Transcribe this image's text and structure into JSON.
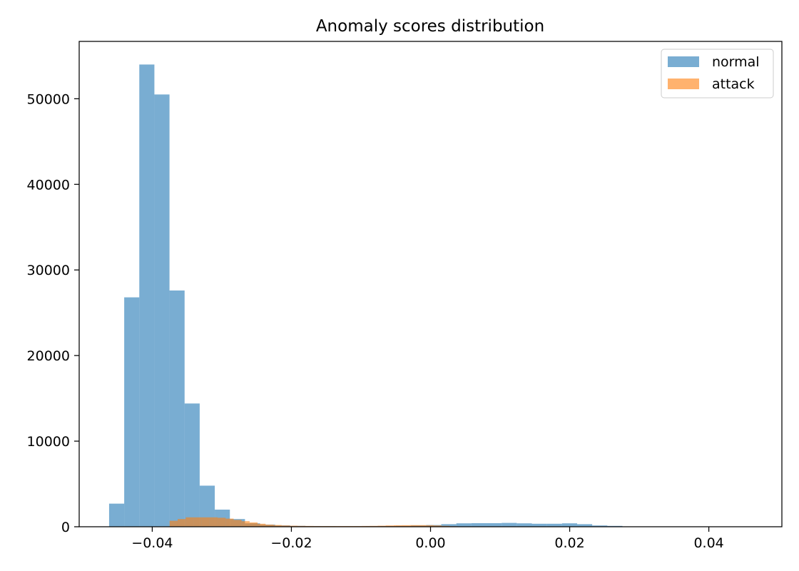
{
  "chart_data": {
    "type": "bar",
    "title": "Anomaly scores distribution",
    "xlabel": "",
    "ylabel": "",
    "xlim": [
      -0.0505,
      0.0505
    ],
    "ylim": [
      0,
      56700
    ],
    "x_ticks": [
      -0.04,
      -0.02,
      0.0,
      0.02,
      0.04
    ],
    "x_tick_labels": [
      "−0.04",
      "−0.02",
      "0.00",
      "0.02",
      "0.04"
    ],
    "y_ticks": [
      0,
      10000,
      20000,
      30000,
      40000,
      50000
    ],
    "y_tick_labels": [
      "0",
      "10000",
      "20000",
      "30000",
      "40000",
      "50000"
    ],
    "grid": false,
    "legend_position": "top-right",
    "series": [
      {
        "name": "normal",
        "color": "#1f77b4",
        "opacity": 0.6,
        "bin_width": 0.00217,
        "bins": [
          {
            "x0": -0.0462,
            "value": 2700
          },
          {
            "x0": -0.04403,
            "value": 26800
          },
          {
            "x0": -0.04186,
            "value": 54000
          },
          {
            "x0": -0.03969,
            "value": 50500
          },
          {
            "x0": -0.03752,
            "value": 27600
          },
          {
            "x0": -0.03535,
            "value": 14400
          },
          {
            "x0": -0.03318,
            "value": 4800
          },
          {
            "x0": -0.03101,
            "value": 2000
          },
          {
            "x0": -0.02884,
            "value": 900
          },
          {
            "x0": -0.02667,
            "value": 400
          },
          {
            "x0": -0.0245,
            "value": 250
          },
          {
            "x0": -0.02233,
            "value": 150
          },
          {
            "x0": -0.02016,
            "value": 100
          },
          {
            "x0": -0.01799,
            "value": 80
          },
          {
            "x0": -0.01582,
            "value": 70
          },
          {
            "x0": -0.01365,
            "value": 60
          },
          {
            "x0": -0.01148,
            "value": 60
          },
          {
            "x0": -0.00931,
            "value": 70
          },
          {
            "x0": -0.00714,
            "value": 80
          },
          {
            "x0": -0.00497,
            "value": 100
          },
          {
            "x0": -0.0028,
            "value": 150
          },
          {
            "x0": -0.00063,
            "value": 200
          },
          {
            "x0": 0.00154,
            "value": 300
          },
          {
            "x0": 0.00371,
            "value": 400
          },
          {
            "x0": 0.00588,
            "value": 420
          },
          {
            "x0": 0.00805,
            "value": 420
          },
          {
            "x0": 0.01022,
            "value": 450
          },
          {
            "x0": 0.01239,
            "value": 400
          },
          {
            "x0": 0.01456,
            "value": 350
          },
          {
            "x0": 0.01673,
            "value": 350
          },
          {
            "x0": 0.0189,
            "value": 400
          },
          {
            "x0": 0.02107,
            "value": 300
          },
          {
            "x0": 0.02324,
            "value": 150
          },
          {
            "x0": 0.02541,
            "value": 100
          },
          {
            "x0": 0.02758,
            "value": 40
          },
          {
            "x0": 0.02975,
            "value": 20
          },
          {
            "x0": 0.03192,
            "value": 10
          },
          {
            "x0": 0.03409,
            "value": 10
          },
          {
            "x0": 0.03626,
            "value": 5
          },
          {
            "x0": 0.03843,
            "value": 5
          },
          {
            "x0": 0.0406,
            "value": 5
          },
          {
            "x0": 0.04277,
            "value": 5
          }
        ]
      },
      {
        "name": "attack",
        "color": "#ff7f0e",
        "opacity": 0.6,
        "bin_width": 0.00115,
        "bins": [
          {
            "x0": -0.0375,
            "value": 700
          },
          {
            "x0": -0.03635,
            "value": 900
          },
          {
            "x0": -0.0352,
            "value": 1100
          },
          {
            "x0": -0.03405,
            "value": 1100
          },
          {
            "x0": -0.0329,
            "value": 1100
          },
          {
            "x0": -0.03175,
            "value": 1100
          },
          {
            "x0": -0.0306,
            "value": 1050
          },
          {
            "x0": -0.02945,
            "value": 950
          },
          {
            "x0": -0.0283,
            "value": 800
          },
          {
            "x0": -0.02715,
            "value": 650
          },
          {
            "x0": -0.026,
            "value": 500
          },
          {
            "x0": -0.02485,
            "value": 350
          },
          {
            "x0": -0.0237,
            "value": 250
          },
          {
            "x0": -0.02255,
            "value": 200
          },
          {
            "x0": -0.0214,
            "value": 150
          },
          {
            "x0": -0.02025,
            "value": 120
          },
          {
            "x0": -0.0191,
            "value": 100
          },
          {
            "x0": -0.01795,
            "value": 90
          },
          {
            "x0": -0.0168,
            "value": 80
          },
          {
            "x0": -0.01565,
            "value": 80
          },
          {
            "x0": -0.0145,
            "value": 80
          },
          {
            "x0": -0.01335,
            "value": 80
          },
          {
            "x0": -0.0122,
            "value": 80
          },
          {
            "x0": -0.01105,
            "value": 80
          },
          {
            "x0": -0.0099,
            "value": 90
          },
          {
            "x0": -0.00875,
            "value": 100
          },
          {
            "x0": -0.0076,
            "value": 120
          },
          {
            "x0": -0.00645,
            "value": 150
          },
          {
            "x0": -0.0053,
            "value": 170
          },
          {
            "x0": -0.00415,
            "value": 180
          },
          {
            "x0": -0.003,
            "value": 190
          },
          {
            "x0": -0.00185,
            "value": 190
          },
          {
            "x0": -0.0007,
            "value": 180
          },
          {
            "x0": 0.00045,
            "value": 150
          },
          {
            "x0": 0.0016,
            "value": 100
          },
          {
            "x0": 0.00275,
            "value": 60
          }
        ]
      }
    ]
  }
}
